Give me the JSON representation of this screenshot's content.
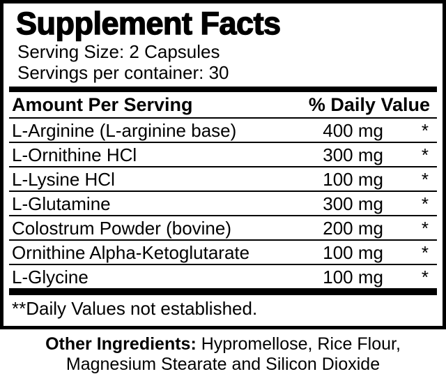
{
  "supplement": {
    "title": "Supplement Facts",
    "serving_size": "Serving Size: 2 Capsules",
    "servings_per_container": "Servings per container: 30",
    "columns": {
      "amount_header": "Amount Per Serving",
      "daily_value_header": "% Daily Value"
    },
    "rows": [
      {
        "name": "L-Arginine (L-arginine base)",
        "amount": "400 mg",
        "dv": "*"
      },
      {
        "name": "L-Ornithine HCl",
        "amount": "300 mg",
        "dv": "*"
      },
      {
        "name": "L-Lysine HCl",
        "amount": "100 mg",
        "dv": "*"
      },
      {
        "name": "L-Glutamine",
        "amount": "300 mg",
        "dv": "*"
      },
      {
        "name": "Colostrum Powder (bovine)",
        "amount": "200 mg",
        "dv": "*"
      },
      {
        "name": "Ornithine Alpha-Ketoglutarate",
        "amount": "100 mg",
        "dv": "*"
      },
      {
        "name": "L-Glycine",
        "amount": "100 mg",
        "dv": "*"
      }
    ],
    "footnote": "**Daily Values not established.",
    "other_ingredients": {
      "label": "Other Ingredients:",
      "line1_rest": " Hypromellose, Rice Flour,",
      "line2": "Magnesium Stearate and Silicon Dioxide"
    },
    "colors": {
      "ink": "#000000",
      "background": "#ffffff"
    }
  }
}
